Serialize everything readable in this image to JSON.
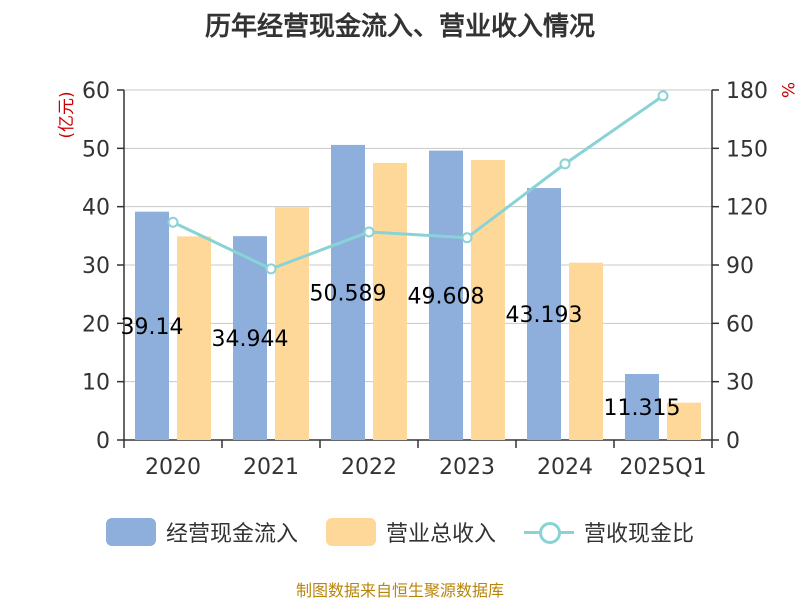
{
  "chart_data": {
    "type": "bar",
    "title": "历年经营现金流入、营业收入情况",
    "categories": [
      "2020",
      "2021",
      "2022",
      "2023",
      "2024",
      "2025Q1"
    ],
    "series": [
      {
        "name": "经营现金流入",
        "type": "bar",
        "axis": "left",
        "values": [
          39.14,
          34.944,
          50.589,
          49.608,
          43.193,
          11.315
        ],
        "labels": [
          "39.14",
          "34.944",
          "50.589",
          "49.608",
          "43.193",
          "11.315"
        ]
      },
      {
        "name": "营业总收入",
        "type": "bar",
        "axis": "left",
        "values": [
          34.9,
          39.9,
          47.5,
          48.0,
          30.4,
          6.4
        ]
      },
      {
        "name": "营收现金比",
        "type": "line",
        "axis": "right",
        "values": [
          112,
          88,
          107,
          104,
          142,
          177
        ]
      }
    ],
    "y_left": {
      "unit": "(亿元)",
      "ylim": [
        0,
        60
      ],
      "ticks": [
        0,
        10,
        20,
        30,
        40,
        50,
        60
      ]
    },
    "y_right": {
      "unit": "%",
      "ylim": [
        0,
        180
      ],
      "ticks": [
        0,
        30,
        60,
        90,
        120,
        150,
        180
      ]
    },
    "grid": true,
    "legend": "bottom"
  },
  "colors": {
    "cash_inflow": "#8eaedb",
    "revenue": "#fed899",
    "ratio_line": "#89d3d7",
    "left_unit": "#cc0000",
    "right_unit": "#cc0000",
    "grid": "#c8c8c8"
  },
  "legend_items": [
    "经营现金流入",
    "营业总收入",
    "营收现金比"
  ],
  "source": "制图数据来自恒生聚源数据库"
}
